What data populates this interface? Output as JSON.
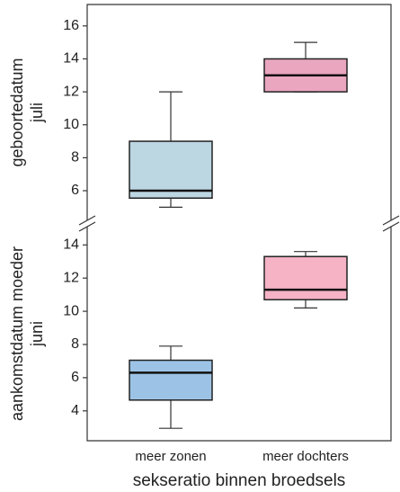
{
  "chart_data": [
    {
      "type": "box",
      "y_label": "geboortedatum",
      "y_sublabel": "juli",
      "ylim": [
        4.2,
        17.3
      ],
      "yticks": [
        6,
        8,
        10,
        12,
        14,
        16
      ],
      "boxes": [
        {
          "min": 5,
          "q1": 5.55,
          "median": 6,
          "q3": 9,
          "max": 12,
          "color": "#bcd6e2"
        },
        {
          "min": 12,
          "q1": 12,
          "median": 13,
          "q3": 14,
          "max": 15,
          "color": "#eaa6bf"
        }
      ]
    },
    {
      "type": "box",
      "y_label": "aankomstdatum moeder",
      "y_sublabel": "juni",
      "ylim": [
        2.2,
        15.1
      ],
      "yticks": [
        4,
        6,
        8,
        10,
        12,
        14
      ],
      "categories": [
        "meer zonen",
        "meer dochters"
      ],
      "x_label": "sekseratio binnen broedsels",
      "boxes": [
        {
          "min": 2.95,
          "q1": 4.65,
          "median": 6.3,
          "q3": 7.05,
          "max": 7.9,
          "color": "#9cc3e5"
        },
        {
          "min": 10.2,
          "q1": 10.7,
          "median": 11.3,
          "q3": 13.3,
          "max": 13.6,
          "color": "#f5b3c5"
        }
      ]
    }
  ]
}
